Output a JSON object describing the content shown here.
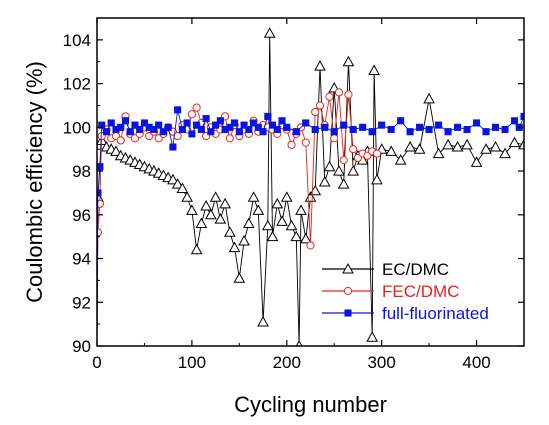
{
  "chart_data": {
    "type": "scatter",
    "title": "",
    "xlabel": "Cycling number",
    "ylabel": "Coulombic efficiency (%)",
    "xlim": [
      0,
      450
    ],
    "ylim": [
      90,
      105
    ],
    "x_ticks": [
      0,
      100,
      200,
      300,
      400
    ],
    "y_ticks": [
      90,
      92,
      94,
      96,
      98,
      100,
      102,
      104
    ],
    "grid": false,
    "legend": "bottom-right",
    "series": [
      {
        "name": "EC/DMC",
        "color": "#000000",
        "marker": "open-triangle",
        "x": [
          1,
          5,
          10,
          15,
          20,
          25,
          30,
          35,
          40,
          45,
          50,
          55,
          60,
          65,
          70,
          75,
          80,
          85,
          90,
          95,
          100,
          105,
          110,
          115,
          120,
          125,
          130,
          135,
          140,
          145,
          150,
          155,
          160,
          165,
          170,
          175,
          180,
          182,
          185,
          190,
          195,
          200,
          205,
          210,
          213,
          215,
          220,
          225,
          230,
          235,
          240,
          245,
          250,
          255,
          260,
          265,
          270,
          275,
          280,
          285,
          290,
          292,
          295,
          300,
          310,
          320,
          330,
          340,
          350,
          360,
          370,
          380,
          390,
          400,
          410,
          420,
          430,
          440,
          450
        ],
        "y": [
          96.8,
          99.4,
          99.1,
          99.0,
          98.9,
          98.7,
          98.6,
          98.5,
          98.4,
          98.3,
          98.2,
          98.1,
          98.0,
          97.9,
          97.8,
          97.7,
          97.6,
          97.4,
          97.2,
          96.8,
          96.2,
          94.4,
          95.6,
          96.4,
          96.0,
          96.8,
          95.8,
          96.5,
          95.2,
          94.5,
          93.1,
          94.8,
          95.6,
          96.8,
          96.2,
          91.1,
          95.5,
          104.3,
          95.0,
          96.5,
          95.7,
          96.8,
          95.5,
          95.0,
          90.0,
          96.2,
          94.9,
          96.8,
          97.1,
          102.8,
          97.5,
          98.2,
          101.8,
          98.0,
          97.4,
          103.0,
          98.0,
          98.7,
          98.5,
          98.9,
          90.4,
          102.6,
          97.6,
          99.0,
          98.9,
          98.5,
          99.1,
          99.0,
          101.3,
          98.8,
          99.2,
          99.1,
          99.2,
          98.4,
          99.0,
          99.1,
          98.8,
          99.3,
          99.2
        ]
      },
      {
        "name": "FEC/DMC",
        "color": "#e8241c",
        "marker": "open-circle",
        "x": [
          1,
          3,
          5,
          10,
          15,
          20,
          25,
          30,
          35,
          40,
          45,
          50,
          55,
          60,
          65,
          70,
          75,
          80,
          85,
          90,
          95,
          100,
          105,
          110,
          115,
          120,
          125,
          130,
          135,
          140,
          145,
          150,
          155,
          160,
          165,
          170,
          175,
          180,
          185,
          190,
          195,
          200,
          205,
          210,
          215,
          220,
          225,
          230,
          235,
          240,
          245,
          250,
          255,
          260,
          265,
          270,
          275,
          280,
          285,
          290,
          295
        ],
        "y": [
          95.2,
          96.5,
          99.6,
          99.9,
          99.5,
          99.6,
          99.4,
          100.5,
          99.7,
          99.5,
          99.7,
          100.0,
          99.6,
          99.8,
          99.5,
          99.7,
          100.0,
          99.8,
          99.6,
          100.1,
          99.9,
          100.6,
          100.9,
          100.2,
          99.6,
          100.0,
          99.7,
          99.9,
          100.5,
          99.5,
          100.1,
          99.6,
          99.9,
          99.7,
          100.3,
          99.8,
          100.1,
          100.0,
          99.9,
          99.7,
          100.1,
          99.9,
          99.2,
          99.7,
          100.0,
          99.3,
          94.6,
          100.7,
          101.0,
          100.1,
          101.4,
          99.5,
          101.6,
          98.5,
          101.5,
          99.0,
          98.6,
          98.8,
          98.7,
          98.9,
          98.8
        ]
      },
      {
        "name": "full-fluorinated",
        "color": "#0a14e0",
        "marker": "filled-square",
        "x": [
          1,
          3,
          5,
          10,
          15,
          20,
          25,
          30,
          35,
          40,
          45,
          50,
          55,
          60,
          65,
          70,
          75,
          80,
          85,
          90,
          95,
          100,
          105,
          110,
          115,
          120,
          125,
          130,
          135,
          140,
          145,
          150,
          155,
          160,
          165,
          170,
          175,
          180,
          185,
          190,
          195,
          200,
          210,
          220,
          230,
          240,
          250,
          260,
          270,
          280,
          290,
          300,
          310,
          320,
          330,
          340,
          350,
          360,
          370,
          380,
          390,
          400,
          410,
          420,
          430,
          440,
          445,
          450
        ],
        "y": [
          97.0,
          98.2,
          100.1,
          99.8,
          100.2,
          99.9,
          100.0,
          100.3,
          99.8,
          100.1,
          99.9,
          100.2,
          100.0,
          99.9,
          100.1,
          99.8,
          100.0,
          99.1,
          100.8,
          99.9,
          100.2,
          99.7,
          100.1,
          99.9,
          100.4,
          99.8,
          100.1,
          100.3,
          99.9,
          100.0,
          100.2,
          99.8,
          100.1,
          99.9,
          100.2,
          100.0,
          99.8,
          100.5,
          100.1,
          99.9,
          100.3,
          100.0,
          99.8,
          100.2,
          99.9,
          100.0,
          99.8,
          100.1,
          99.9,
          100.0,
          99.8,
          100.1,
          99.9,
          100.3,
          99.8,
          100.0,
          99.9,
          100.1,
          99.8,
          100.0,
          99.9,
          100.2,
          99.8,
          100.0,
          99.9,
          100.3,
          100.0,
          100.5
        ]
      }
    ]
  }
}
